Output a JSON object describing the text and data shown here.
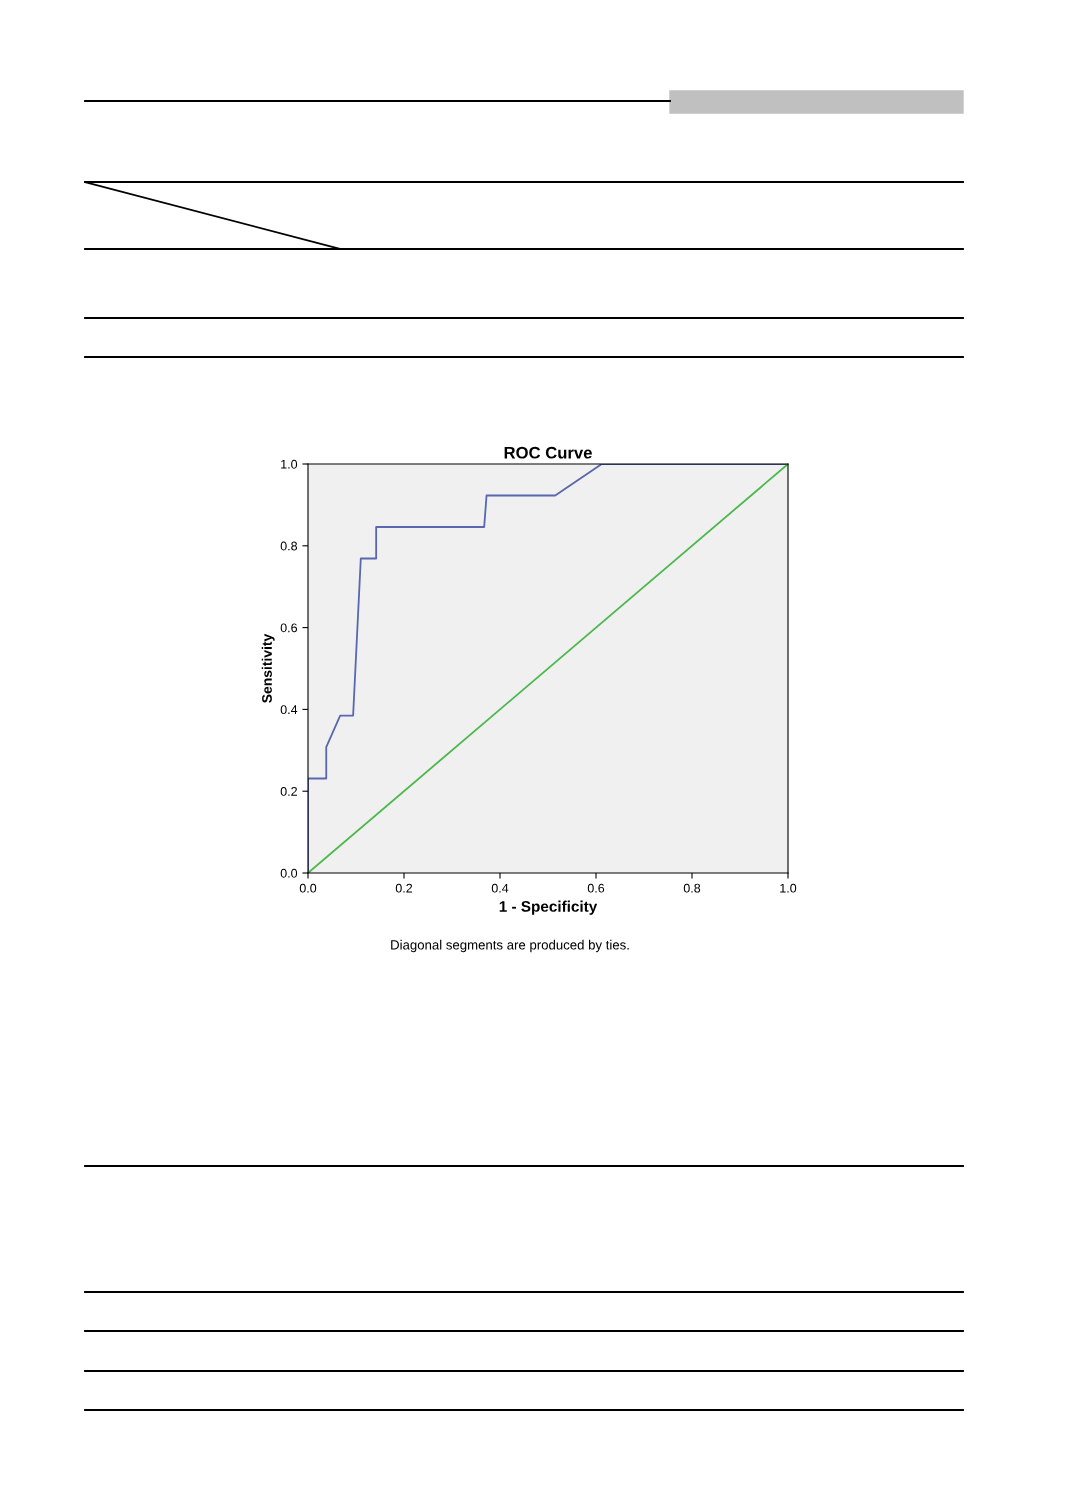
{
  "chart_data": {
    "type": "line",
    "title": "ROC Curve",
    "xlabel": "1 - Specificity",
    "ylabel": "Sensitivity",
    "annotations": [
      "Diagonal segments are produced by ties."
    ],
    "series": [
      {
        "color": "#5a67b0",
        "x": [
          0,
          0,
          0.038,
          0.038,
          0.067,
          0.094,
          0.094,
          0.11,
          0.142,
          0.142,
          0.367,
          0.372,
          0.515,
          0.612,
          1.0
        ],
        "values": [
          0,
          0.231,
          0.231,
          0.308,
          0.385,
          0.385,
          0.385,
          0.769,
          0.769,
          0.846,
          0.846,
          0.923,
          0.923,
          1.0,
          1.0
        ]
      },
      {
        "color": "#4cb84c",
        "x": [
          0,
          1
        ],
        "values": [
          0,
          1
        ]
      }
    ],
    "xlim": [
      0,
      1
    ],
    "ylim": [
      0,
      1
    ],
    "xticks": [
      {
        "value": 0,
        "label": "0.0"
      },
      {
        "value": 0.2,
        "label": "0.2"
      },
      {
        "value": 0.4,
        "label": "0.4"
      },
      {
        "value": 0.6,
        "label": "0.6"
      },
      {
        "value": 0.8,
        "label": "0.8"
      },
      {
        "value": 1,
        "label": "1.0"
      }
    ],
    "yticks": [
      {
        "value": 0,
        "label": "0.0"
      },
      {
        "value": 0.2,
        "label": "0.2"
      },
      {
        "value": 0.4,
        "label": "0.4"
      },
      {
        "value": 0.6,
        "label": "0.6"
      },
      {
        "value": 0.8,
        "label": "0.8"
      },
      {
        "value": 1,
        "label": "1.0"
      }
    ],
    "grid": false,
    "legend": false,
    "marker": "none",
    "line_style": "solid"
  }
}
